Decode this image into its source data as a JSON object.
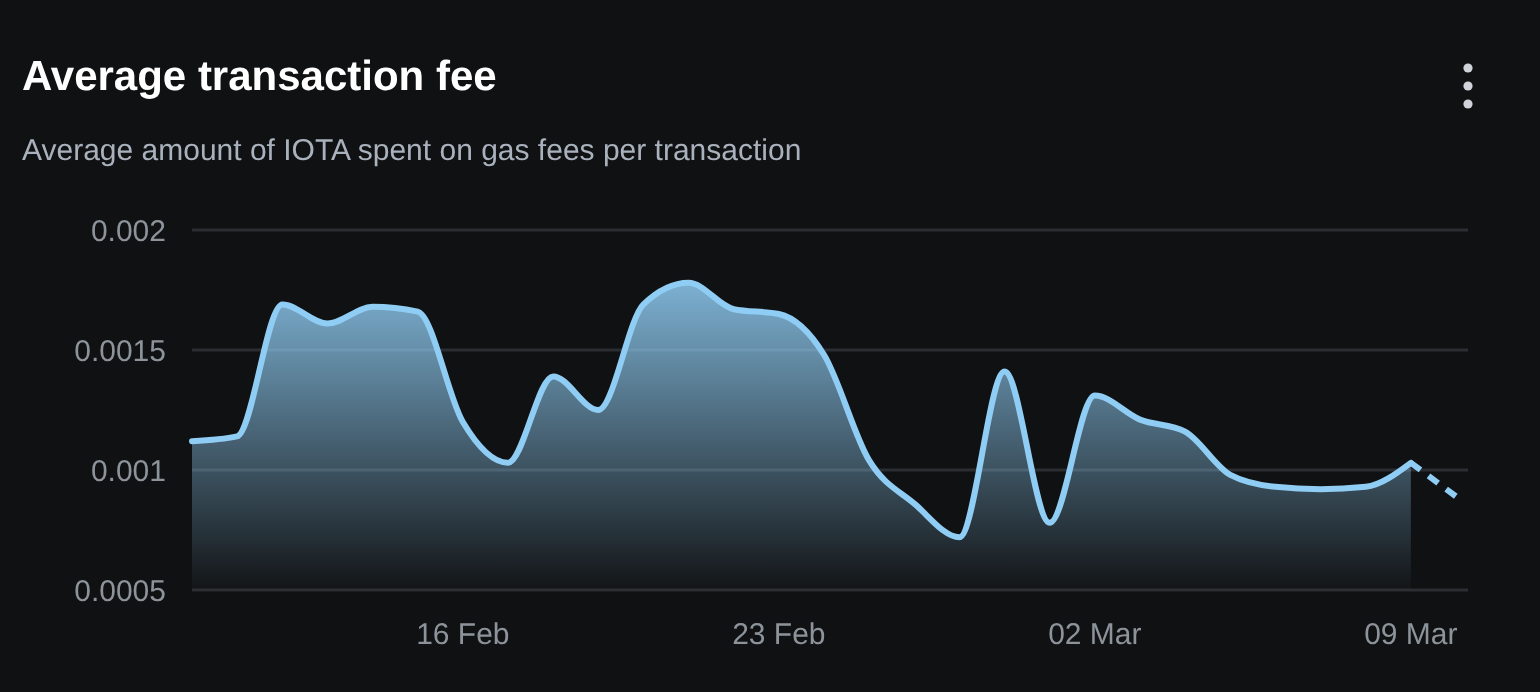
{
  "chart_data": {
    "type": "area",
    "title": "Average transaction fee",
    "subtitle": "Average amount of IOTA spent on gas fees per transaction",
    "categories": [
      null,
      null,
      null,
      null,
      null,
      null,
      "16 Feb",
      null,
      null,
      null,
      null,
      null,
      null,
      "23 Feb",
      null,
      null,
      null,
      null,
      null,
      null,
      "02 Mar",
      null,
      null,
      null,
      null,
      null,
      null,
      "09 Mar",
      null
    ],
    "series": [
      {
        "color": "#90cdf4",
        "values": [
          0.00112,
          0.00114,
          0.00169,
          0.00161,
          0.00168,
          0.00166,
          0.0012,
          0.00103,
          0.00139,
          0.00125,
          0.00169,
          0.00178,
          0.00167,
          0.00165,
          0.00148,
          0.00104,
          0.00086,
          0.00072,
          0.00141,
          0.00078,
          0.00131,
          0.00121,
          0.00116,
          0.00098,
          0.00093,
          0.00092,
          0.00093,
          0.00103,
          null
        ]
      },
      {
        "type": "line",
        "color": "#90cdf4",
        "line_style": "dashed",
        "values": [
          null,
          null,
          null,
          null,
          null,
          null,
          null,
          null,
          null,
          null,
          null,
          null,
          null,
          null,
          null,
          null,
          null,
          null,
          null,
          null,
          null,
          null,
          null,
          null,
          null,
          null,
          null,
          0.00103,
          0.00089
        ]
      }
    ],
    "ylim": [
      0.0005,
      0.002
    ],
    "yticks": [
      0.0005,
      0.001,
      0.0015,
      0.002
    ],
    "grid": "y"
  }
}
